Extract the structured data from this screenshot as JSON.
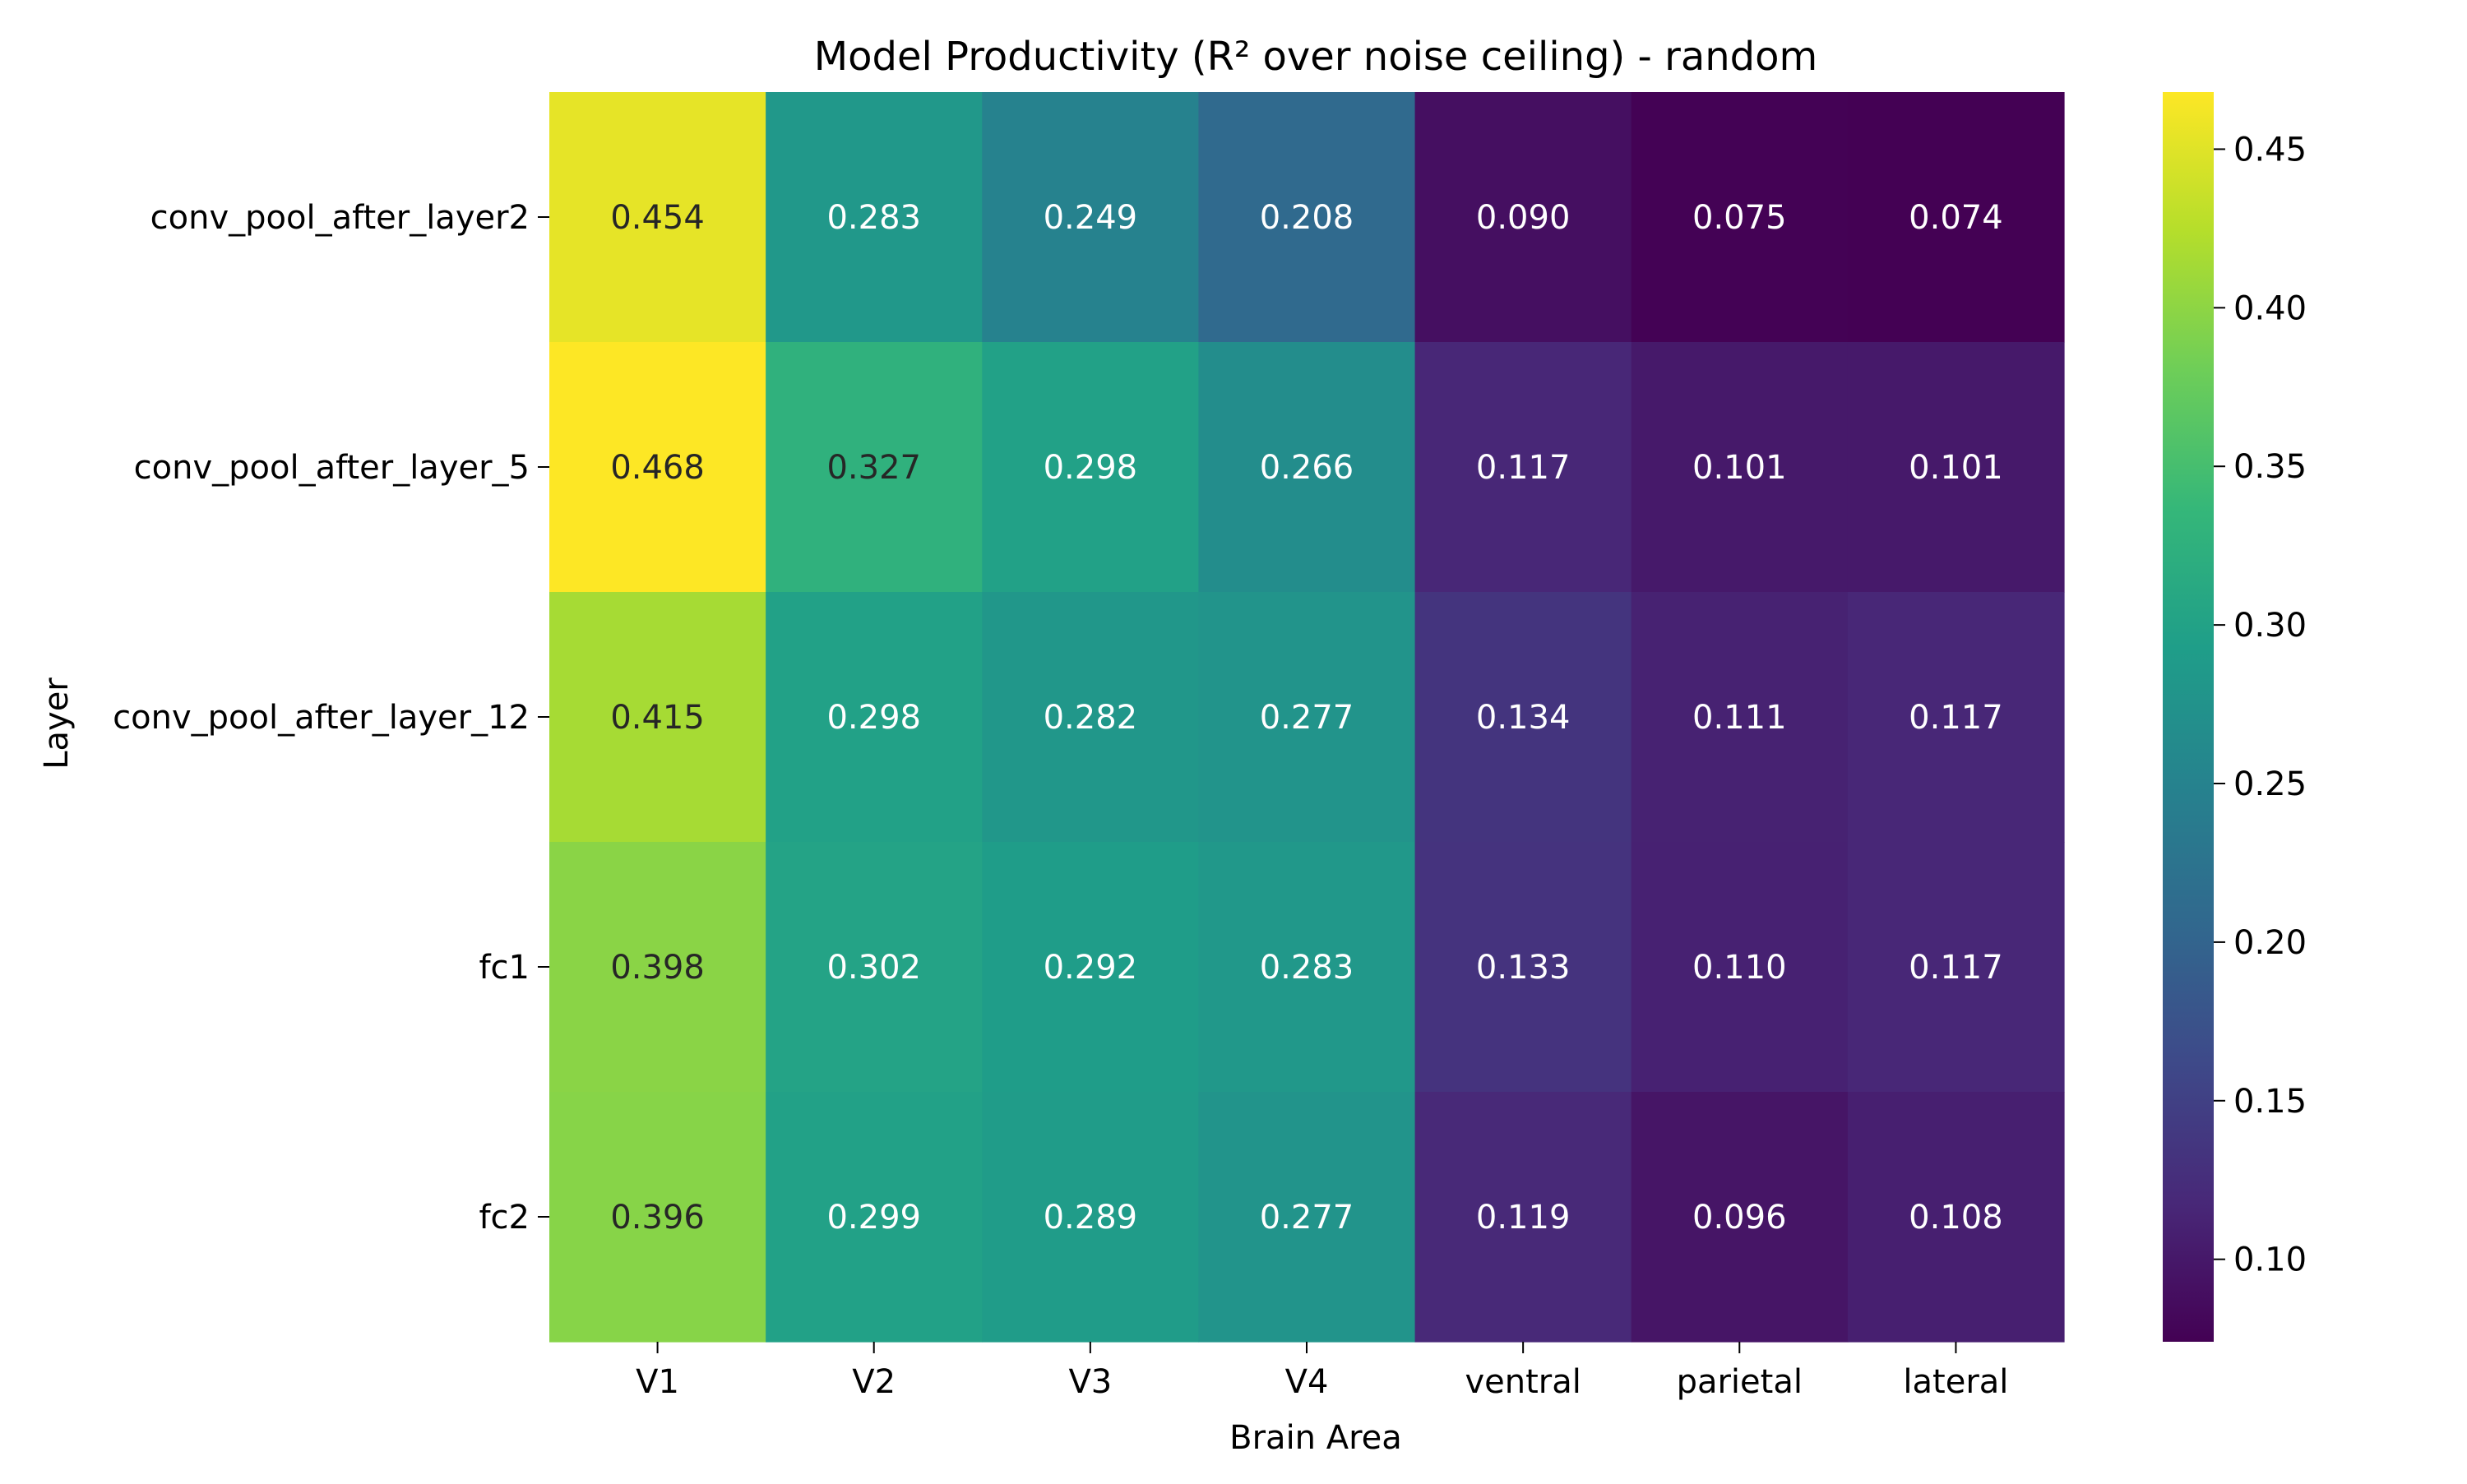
{
  "chart_data": {
    "type": "heatmap",
    "title": "Model Productivity (R² over noise ceiling) - random",
    "xlabel": "Brain Area",
    "ylabel": "Layer",
    "x_categories": [
      "V1",
      "V2",
      "V3",
      "V4",
      "ventral",
      "parietal",
      "lateral"
    ],
    "y_categories": [
      "conv_pool_after_layer2",
      "conv_pool_after_layer_5",
      "conv_pool_after_layer_12",
      "fc1",
      "fc2"
    ],
    "values": [
      [
        0.454,
        0.283,
        0.249,
        0.208,
        0.09,
        0.075,
        0.074
      ],
      [
        0.468,
        0.327,
        0.298,
        0.266,
        0.117,
        0.101,
        0.101
      ],
      [
        0.415,
        0.298,
        0.282,
        0.277,
        0.134,
        0.111,
        0.117
      ],
      [
        0.398,
        0.302,
        0.292,
        0.283,
        0.133,
        0.11,
        0.117
      ],
      [
        0.396,
        0.299,
        0.289,
        0.277,
        0.119,
        0.096,
        0.108
      ]
    ],
    "value_labels": [
      [
        "0.454",
        "0.283",
        "0.249",
        "0.208",
        "0.090",
        "0.075",
        "0.074"
      ],
      [
        "0.468",
        "0.327",
        "0.298",
        "0.266",
        "0.117",
        "0.101",
        "0.101"
      ],
      [
        "0.415",
        "0.298",
        "0.282",
        "0.277",
        "0.134",
        "0.111",
        "0.117"
      ],
      [
        "0.398",
        "0.302",
        "0.292",
        "0.283",
        "0.133",
        "0.110",
        "0.117"
      ],
      [
        "0.396",
        "0.299",
        "0.289",
        "0.277",
        "0.119",
        "0.096",
        "0.108"
      ]
    ],
    "colormap": "viridis",
    "color_range": [
      0.074,
      0.468
    ],
    "colorbar_ticks": [
      0.1,
      0.15,
      0.2,
      0.25,
      0.3,
      0.35,
      0.4,
      0.45
    ],
    "colorbar_tick_labels": [
      "0.10",
      "0.15",
      "0.20",
      "0.25",
      "0.30",
      "0.35",
      "0.40",
      "0.45"
    ],
    "legend_placement": "right",
    "grid": false
  }
}
